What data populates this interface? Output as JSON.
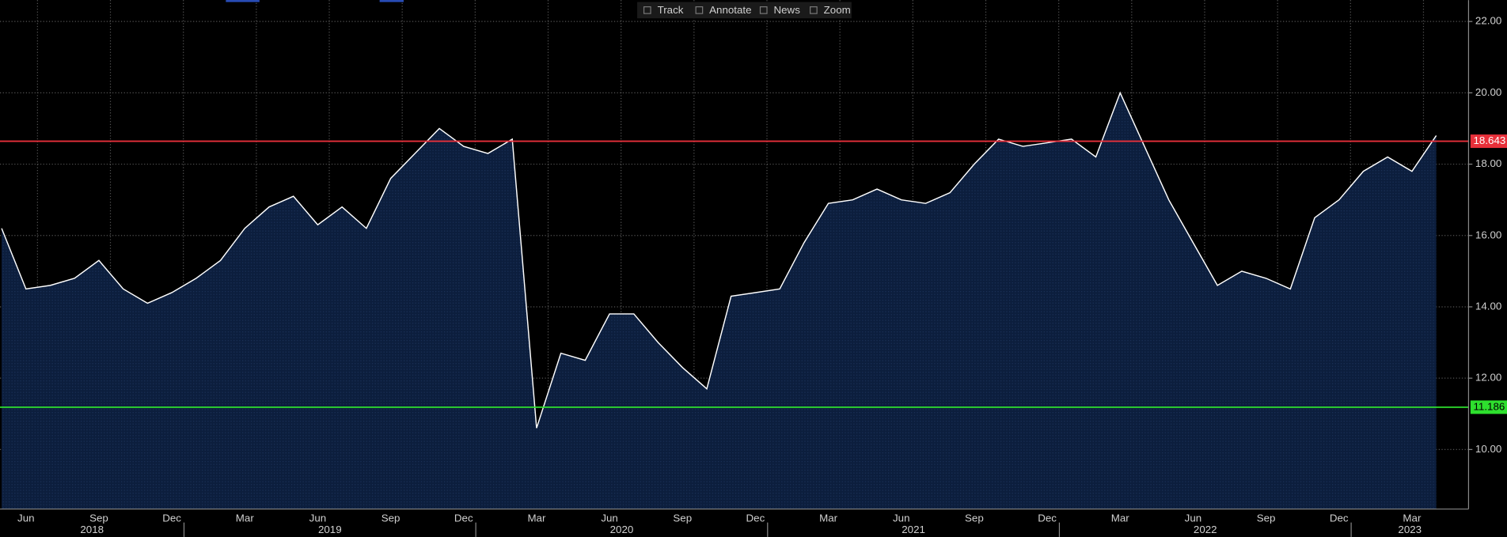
{
  "toolbar": [
    "Track",
    "Annotate",
    "News",
    "Zoom"
  ],
  "chart_data": {
    "type": "line",
    "x": [
      "2018-05",
      "2018-06",
      "2018-07",
      "2018-08",
      "2018-09",
      "2018-10",
      "2018-11",
      "2018-12",
      "2019-01",
      "2019-02",
      "2019-03",
      "2019-04",
      "2019-05",
      "2019-06",
      "2019-07",
      "2019-08",
      "2019-09",
      "2019-10",
      "2019-11",
      "2019-12",
      "2020-01",
      "2020-02",
      "2020-03",
      "2020-04",
      "2020-05",
      "2020-06",
      "2020-07",
      "2020-08",
      "2020-09",
      "2020-10",
      "2020-11",
      "2020-12",
      "2021-01",
      "2021-02",
      "2021-03",
      "2021-04",
      "2021-05",
      "2021-06",
      "2021-07",
      "2021-08",
      "2021-09",
      "2021-10",
      "2021-11",
      "2021-12",
      "2022-01",
      "2022-02",
      "2022-03",
      "2022-04",
      "2022-05",
      "2022-06",
      "2022-07",
      "2022-08",
      "2022-09",
      "2022-10",
      "2022-11",
      "2022-12",
      "2023-01",
      "2023-02",
      "2023-03",
      "2023-04"
    ],
    "series": [
      {
        "color": "#ffffff",
        "fill": "#0c1e3d",
        "values": [
          16.2,
          14.5,
          14.6,
          14.8,
          15.3,
          14.5,
          14.1,
          14.4,
          14.8,
          15.3,
          16.2,
          16.8,
          17.1,
          16.3,
          16.8,
          16.2,
          17.6,
          18.3,
          19.0,
          18.5,
          18.3,
          18.7,
          10.6,
          12.7,
          12.5,
          13.8,
          13.8,
          13.0,
          12.3,
          11.7,
          14.3,
          14.4,
          14.5,
          15.8,
          16.9,
          17.0,
          17.3,
          17.0,
          16.9,
          17.2,
          18.0,
          18.7,
          18.5,
          18.6,
          18.7,
          18.2,
          20.0,
          18.5,
          17.0,
          15.8,
          14.6,
          15.0,
          14.8,
          14.5,
          16.5,
          17.0,
          17.8,
          18.2,
          17.8,
          18.8
        ]
      }
    ],
    "ylim": [
      8.33,
      22.6
    ],
    "yticks": [
      {
        "value": 10,
        "label": "10.00"
      },
      {
        "value": 12,
        "label": "12.00"
      },
      {
        "value": 14,
        "label": "14.00"
      },
      {
        "value": 16,
        "label": "16.00"
      },
      {
        "value": 18,
        "label": "18.00"
      },
      {
        "value": 20,
        "label": "20.00"
      },
      {
        "value": 22,
        "label": "22.00"
      }
    ],
    "xticks": [
      {
        "value": "2018-06",
        "label": "Jun"
      },
      {
        "value": "2018-09",
        "label": "Sep"
      },
      {
        "value": "2018-12",
        "label": "Dec"
      },
      {
        "value": "2019-03",
        "label": "Mar"
      },
      {
        "value": "2019-06",
        "label": "Jun"
      },
      {
        "value": "2019-09",
        "label": "Sep"
      },
      {
        "value": "2019-12",
        "label": "Dec"
      },
      {
        "value": "2020-03",
        "label": "Mar"
      },
      {
        "value": "2020-06",
        "label": "Jun"
      },
      {
        "value": "2020-09",
        "label": "Sep"
      },
      {
        "value": "2020-12",
        "label": "Dec"
      },
      {
        "value": "2021-03",
        "label": "Mar"
      },
      {
        "value": "2021-06",
        "label": "Jun"
      },
      {
        "value": "2021-09",
        "label": "Sep"
      },
      {
        "value": "2021-12",
        "label": "Dec"
      },
      {
        "value": "2022-03",
        "label": "Mar"
      },
      {
        "value": "2022-06",
        "label": "Jun"
      },
      {
        "value": "2022-09",
        "label": "Sep"
      },
      {
        "value": "2022-12",
        "label": "Dec"
      },
      {
        "value": "2023-03",
        "label": "Mar"
      }
    ],
    "year_labels": [
      "2018",
      "2019",
      "2020",
      "2021",
      "2022",
      "2023"
    ],
    "reference_lines": [
      {
        "value": 18.643,
        "color": "#e8303a"
      },
      {
        "value": 11.186,
        "color": "#2ee02e"
      }
    ],
    "grid": true
  }
}
